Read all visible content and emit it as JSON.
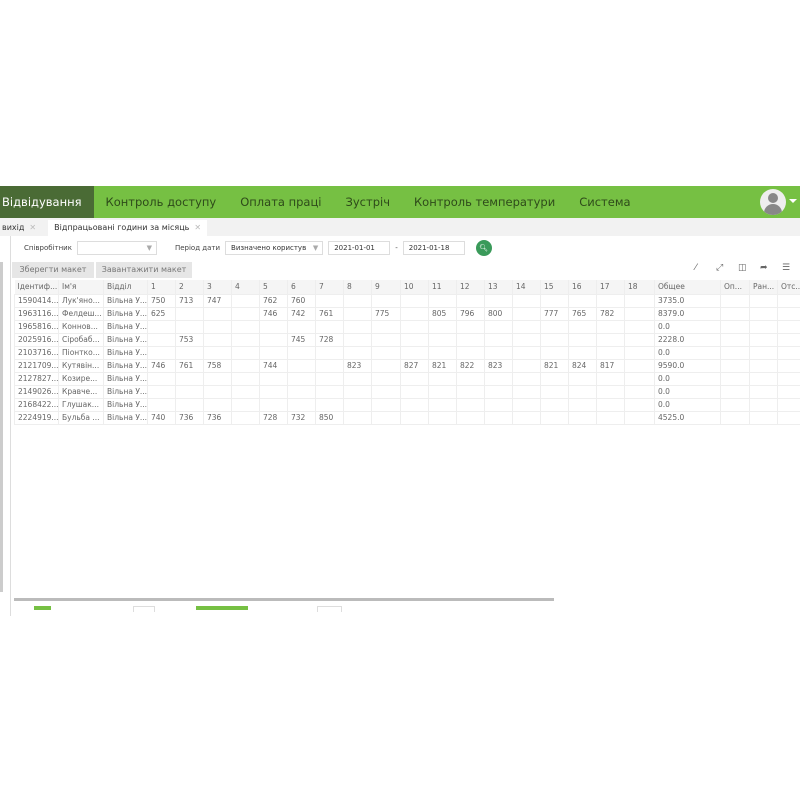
{
  "nav": {
    "items": [
      "Відвідування",
      "Контроль доступу",
      "Оплата праці",
      "Зустріч",
      "Контроль температури",
      "Система"
    ],
    "active": 0,
    "accent": "#76c043"
  },
  "tabs": [
    {
      "label": "вихід"
    },
    {
      "label": "Відпрацьовані години за місяць",
      "active": true
    }
  ],
  "filters": {
    "employee_label": "Співробітник",
    "employee_value": "",
    "period_label": "Період дати",
    "period_value": "Визначено користув",
    "date_from": "2021-01-01",
    "separator": "-",
    "date_to": "2021-01-18"
  },
  "buttons": {
    "save_layout": "Зберегти макет",
    "load_layout": "Завантажити макет"
  },
  "table": {
    "columns": [
      "Ідентиф...",
      "Ім'я",
      "Відділ",
      "1",
      "2",
      "3",
      "4",
      "5",
      "6",
      "7",
      "8",
      "9",
      "10",
      "11",
      "12",
      "13",
      "14",
      "15",
      "16",
      "17",
      "18",
      "Общее",
      "Оп...",
      "Ран...",
      "Отс..."
    ],
    "rows": [
      [
        "1590414...",
        "Лук'яно...",
        "Вільна У...",
        "750",
        "713",
        "747",
        "",
        "762",
        "760",
        "",
        "",
        "",
        "",
        "",
        "",
        "",
        "",
        "",
        "",
        "",
        "",
        "3735.0",
        "",
        "",
        ""
      ],
      [
        "1963116...",
        "Фелдеш...",
        "Вільна У...",
        "625",
        "",
        "",
        "",
        "746",
        "742",
        "761",
        "",
        "775",
        "",
        "805",
        "796",
        "800",
        "",
        "777",
        "765",
        "782",
        "",
        "8379.0",
        "",
        "",
        ""
      ],
      [
        "1965816...",
        "Коннов...",
        "Вільна У...",
        "",
        "",
        "",
        "",
        "",
        "",
        "",
        "",
        "",
        "",
        "",
        "",
        "",
        "",
        "",
        "",
        "",
        "",
        "0.0",
        "",
        "",
        ""
      ],
      [
        "2025916...",
        "Сіробаб...",
        "Вільна У...",
        "",
        "753",
        "",
        "",
        "",
        "745",
        "728",
        "",
        "",
        "",
        "",
        "",
        "",
        "",
        "",
        "",
        "",
        "",
        "2228.0",
        "",
        "",
        ""
      ],
      [
        "2103716...",
        "Піонтко...",
        "Вільна У...",
        "",
        "",
        "",
        "",
        "",
        "",
        "",
        "",
        "",
        "",
        "",
        "",
        "",
        "",
        "",
        "",
        "",
        "",
        "0.0",
        "",
        "",
        ""
      ],
      [
        "2121709...",
        "Кутявін...",
        "Вільна У...",
        "746",
        "761",
        "758",
        "",
        "744",
        "",
        "",
        "823",
        "",
        "827",
        "821",
        "822",
        "823",
        "",
        "821",
        "824",
        "817",
        "",
        "9590.0",
        "",
        "",
        ""
      ],
      [
        "2127827...",
        "Козире...",
        "Вільна У...",
        "",
        "",
        "",
        "",
        "",
        "",
        "",
        "",
        "",
        "",
        "",
        "",
        "",
        "",
        "",
        "",
        "",
        "",
        "0.0",
        "",
        "",
        ""
      ],
      [
        "2149026...",
        "Кравче...",
        "Вільна У...",
        "",
        "",
        "",
        "",
        "",
        "",
        "",
        "",
        "",
        "",
        "",
        "",
        "",
        "",
        "",
        "",
        "",
        "",
        "0.0",
        "",
        "",
        ""
      ],
      [
        "2168422...",
        "Глушак...",
        "Вільна У...",
        "",
        "",
        "",
        "",
        "",
        "",
        "",
        "",
        "",
        "",
        "",
        "",
        "",
        "",
        "",
        "",
        "",
        "",
        "0.0",
        "",
        "",
        ""
      ],
      [
        "2224919...",
        "Бульба ...",
        "Вільна У...",
        "740",
        "736",
        "736",
        "",
        "728",
        "732",
        "850",
        "",
        "",
        "",
        "",
        "",
        "",
        "",
        "",
        "",
        "",
        "",
        "4525.0",
        "",
        "",
        ""
      ]
    ]
  }
}
